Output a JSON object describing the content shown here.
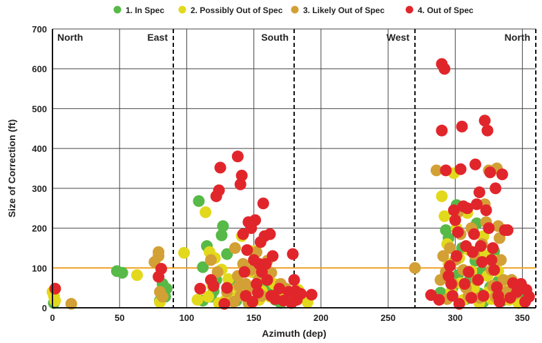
{
  "chart_data": {
    "type": "scatter",
    "xlabel": "Azimuth (dep)",
    "ylabel": "Size of Correction (ft)",
    "xlim": [
      0,
      360
    ],
    "ylim": [
      0,
      700
    ],
    "xticks": [
      0,
      50,
      100,
      150,
      200,
      250,
      300,
      350
    ],
    "yticks": [
      0,
      100,
      200,
      300,
      400,
      500,
      600,
      700
    ],
    "x_tick_labels": [
      "0",
      "50",
      "100",
      "150",
      "200",
      "250",
      "300",
      "350"
    ],
    "y_tick_labels": [
      "0",
      "100",
      "200",
      "300",
      "400",
      "500",
      "600",
      "700"
    ],
    "grid": true,
    "legend_position": "top",
    "threshold": {
      "value": 100,
      "color": "#f0a020"
    },
    "regions": [
      {
        "label": "North",
        "start": 0,
        "end": 90,
        "align": "left"
      },
      {
        "label": "East",
        "start": 0,
        "end": 90,
        "align": "right"
      },
      {
        "label": "South",
        "start": 90,
        "end": 180,
        "align": "right"
      },
      {
        "label": "West",
        "start": 180,
        "end": 270,
        "align": "right"
      },
      {
        "label": "North",
        "start": 270,
        "end": 360,
        "align": "right"
      }
    ],
    "dividers": [
      90,
      180,
      270,
      360
    ],
    "series": [
      {
        "name": "1. In Spec",
        "color": "#57b947",
        "points": [
          [
            1,
            12
          ],
          [
            48,
            92
          ],
          [
            52,
            88
          ],
          [
            80,
            18
          ],
          [
            81,
            40
          ],
          [
            82,
            60
          ],
          [
            84,
            28
          ],
          [
            85,
            48
          ],
          [
            109,
            268
          ],
          [
            112,
            18
          ],
          [
            112,
            102
          ],
          [
            115,
            155
          ],
          [
            118,
            28
          ],
          [
            120,
            42
          ],
          [
            122,
            70
          ],
          [
            126,
            182
          ],
          [
            127,
            205
          ],
          [
            130,
            135
          ],
          [
            133,
            58
          ],
          [
            137,
            18
          ],
          [
            141,
            48
          ],
          [
            151,
            88
          ],
          [
            154,
            25
          ],
          [
            156,
            62
          ],
          [
            161,
            42
          ],
          [
            166,
            20
          ],
          [
            170,
            12
          ],
          [
            289,
            38
          ],
          [
            293,
            195
          ],
          [
            295,
            175
          ],
          [
            296,
            110
          ],
          [
            298,
            50
          ],
          [
            301,
            258
          ],
          [
            302,
            82
          ],
          [
            305,
            150
          ],
          [
            308,
            22
          ],
          [
            311,
            72
          ],
          [
            313,
            195
          ],
          [
            315,
            118
          ],
          [
            316,
            212
          ],
          [
            318,
            36
          ],
          [
            320,
            92
          ],
          [
            321,
            15
          ],
          [
            326,
            52
          ],
          [
            329,
            142
          ],
          [
            332,
            66
          ],
          [
            335,
            18
          ],
          [
            347,
            36
          ]
        ]
      },
      {
        "name": "2. Possibly Out of Spec",
        "color": "#e2d91c",
        "points": [
          [
            0,
            40
          ],
          [
            1,
            30
          ],
          [
            2,
            18
          ],
          [
            63,
            82
          ],
          [
            80,
            14
          ],
          [
            98,
            138
          ],
          [
            108,
            20
          ],
          [
            114,
            240
          ],
          [
            116,
            28
          ],
          [
            117,
            140
          ],
          [
            119,
            55
          ],
          [
            121,
            125
          ],
          [
            124,
            12
          ],
          [
            126,
            96
          ],
          [
            129,
            20
          ],
          [
            131,
            72
          ],
          [
            135,
            24
          ],
          [
            138,
            50
          ],
          [
            141,
            180
          ],
          [
            142,
            110
          ],
          [
            144,
            33
          ],
          [
            146,
            20
          ],
          [
            148,
            90
          ],
          [
            150,
            142
          ],
          [
            152,
            55
          ],
          [
            154,
            20
          ],
          [
            156,
            42
          ],
          [
            158,
            86
          ],
          [
            162,
            28
          ],
          [
            165,
            60
          ],
          [
            172,
            22
          ],
          [
            175,
            40
          ],
          [
            178,
            12
          ],
          [
            183,
            45
          ],
          [
            186,
            30
          ],
          [
            190,
            14
          ],
          [
            290,
            280
          ],
          [
            292,
            230
          ],
          [
            294,
            160
          ],
          [
            295,
            110
          ],
          [
            297,
            40
          ],
          [
            299,
            338
          ],
          [
            301,
            200
          ],
          [
            303,
            125
          ],
          [
            304,
            62
          ],
          [
            306,
            20
          ],
          [
            309,
            238
          ],
          [
            310,
            145
          ],
          [
            312,
            92
          ],
          [
            314,
            50
          ],
          [
            316,
            28
          ],
          [
            318,
            12
          ],
          [
            321,
            180
          ],
          [
            322,
            132
          ],
          [
            324,
            80
          ],
          [
            325,
            40
          ],
          [
            327,
            22
          ],
          [
            330,
            118
          ],
          [
            332,
            92
          ],
          [
            335,
            48
          ],
          [
            340,
            20
          ],
          [
            347,
            12
          ]
        ]
      },
      {
        "name": "3. Likely Out of Spec",
        "color": "#d3a035",
        "points": [
          [
            14,
            10
          ],
          [
            76,
            115
          ],
          [
            79,
            140
          ],
          [
            79,
            130
          ],
          [
            80,
            40
          ],
          [
            82,
            28
          ],
          [
            118,
            120
          ],
          [
            123,
            90
          ],
          [
            130,
            40
          ],
          [
            135,
            15
          ],
          [
            136,
            150
          ],
          [
            138,
            80
          ],
          [
            139,
            55
          ],
          [
            140,
            30
          ],
          [
            142,
            110
          ],
          [
            144,
            60
          ],
          [
            146,
            12
          ],
          [
            148,
            95
          ],
          [
            149,
            50
          ],
          [
            152,
            140
          ],
          [
            154,
            72
          ],
          [
            156,
            30
          ],
          [
            160,
            118
          ],
          [
            163,
            88
          ],
          [
            170,
            60
          ],
          [
            174,
            48
          ],
          [
            181,
            20
          ],
          [
            270,
            100
          ],
          [
            286,
            345
          ],
          [
            289,
            70
          ],
          [
            291,
            130
          ],
          [
            293,
            90
          ],
          [
            294,
            22
          ],
          [
            296,
            150
          ],
          [
            298,
            60
          ],
          [
            300,
            120
          ],
          [
            302,
            240
          ],
          [
            304,
            185
          ],
          [
            306,
            95
          ],
          [
            308,
            50
          ],
          [
            310,
            30
          ],
          [
            312,
            200
          ],
          [
            314,
            135
          ],
          [
            316,
            70
          ],
          [
            318,
            25
          ],
          [
            320,
            160
          ],
          [
            322,
            260
          ],
          [
            323,
            215
          ],
          [
            325,
            345
          ],
          [
            327,
            95
          ],
          [
            328,
            55
          ],
          [
            330,
            28
          ],
          [
            331,
            350
          ],
          [
            332,
            205
          ],
          [
            333,
            175
          ],
          [
            334,
            120
          ],
          [
            336,
            70
          ],
          [
            338,
            40
          ],
          [
            342,
            70
          ],
          [
            345,
            35
          ]
        ]
      },
      {
        "name": "4. Out of Spec",
        "color": "#e1262b",
        "points": [
          [
            2,
            48
          ],
          [
            79,
            78
          ],
          [
            81,
            98
          ],
          [
            110,
            48
          ],
          [
            118,
            70
          ],
          [
            120,
            55
          ],
          [
            122,
            280
          ],
          [
            124,
            295
          ],
          [
            125,
            352
          ],
          [
            128,
            10
          ],
          [
            130,
            50
          ],
          [
            138,
            380
          ],
          [
            140,
            310
          ],
          [
            141,
            332
          ],
          [
            142,
            185
          ],
          [
            143,
            90
          ],
          [
            144,
            30
          ],
          [
            145,
            145
          ],
          [
            146,
            215
          ],
          [
            148,
            200
          ],
          [
            149,
            15
          ],
          [
            150,
            120
          ],
          [
            151,
            220
          ],
          [
            152,
            60
          ],
          [
            153,
            38
          ],
          [
            154,
            110
          ],
          [
            155,
            165
          ],
          [
            156,
            90
          ],
          [
            157,
            262
          ],
          [
            158,
            180
          ],
          [
            159,
            110
          ],
          [
            160,
            70
          ],
          [
            162,
            185
          ],
          [
            163,
            30
          ],
          [
            164,
            130
          ],
          [
            166,
            22
          ],
          [
            169,
            48
          ],
          [
            172,
            18
          ],
          [
            176,
            40
          ],
          [
            178,
            12
          ],
          [
            179,
            135
          ],
          [
            180,
            70
          ],
          [
            181,
            42
          ],
          [
            182,
            20
          ],
          [
            185,
            35
          ],
          [
            193,
            33
          ],
          [
            282,
            32
          ],
          [
            288,
            20
          ],
          [
            290,
            612
          ],
          [
            290,
            445
          ],
          [
            292,
            600
          ],
          [
            293,
            345
          ],
          [
            295,
            80
          ],
          [
            296,
            105
          ],
          [
            297,
            60
          ],
          [
            298,
            30
          ],
          [
            299,
            245
          ],
          [
            300,
            220
          ],
          [
            301,
            130
          ],
          [
            302,
            190
          ],
          [
            303,
            10
          ],
          [
            304,
            348
          ],
          [
            305,
            455
          ],
          [
            306,
            255
          ],
          [
            307,
            60
          ],
          [
            308,
            155
          ],
          [
            309,
            250
          ],
          [
            310,
            90
          ],
          [
            312,
            25
          ],
          [
            313,
            140
          ],
          [
            314,
            185
          ],
          [
            315,
            360
          ],
          [
            316,
            260
          ],
          [
            317,
            70
          ],
          [
            318,
            290
          ],
          [
            319,
            155
          ],
          [
            320,
            115
          ],
          [
            321,
            30
          ],
          [
            322,
            470
          ],
          [
            323,
            245
          ],
          [
            324,
            445
          ],
          [
            325,
            200
          ],
          [
            326,
            340
          ],
          [
            327,
            120
          ],
          [
            328,
            150
          ],
          [
            329,
            95
          ],
          [
            330,
            300
          ],
          [
            331,
            52
          ],
          [
            332,
            30
          ],
          [
            333,
            15
          ],
          [
            335,
            335
          ],
          [
            337,
            195
          ],
          [
            339,
            195
          ],
          [
            341,
            25
          ],
          [
            343,
            62
          ],
          [
            346,
            40
          ],
          [
            349,
            60
          ],
          [
            352,
            15
          ],
          [
            353,
            45
          ],
          [
            355,
            28
          ]
        ]
      }
    ]
  }
}
